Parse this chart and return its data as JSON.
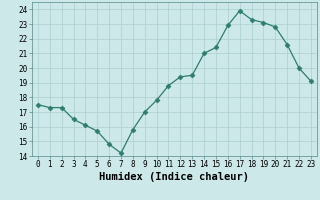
{
  "x": [
    0,
    1,
    2,
    3,
    4,
    5,
    6,
    7,
    8,
    9,
    10,
    11,
    12,
    13,
    14,
    15,
    16,
    17,
    18,
    19,
    20,
    21,
    22,
    23
  ],
  "y": [
    17.5,
    17.3,
    17.3,
    16.5,
    16.1,
    15.7,
    14.8,
    14.2,
    15.8,
    17.0,
    17.8,
    18.8,
    19.4,
    19.5,
    21.0,
    21.4,
    22.9,
    23.9,
    23.3,
    23.1,
    22.8,
    21.6,
    20.0,
    19.1
  ],
  "line_color": "#2e7d6e",
  "marker": "D",
  "marker_size": 2.5,
  "bg_color": "#cce8e8",
  "grid_color": "#aacfcf",
  "xlabel": "Humidex (Indice chaleur)",
  "xlim": [
    -0.5,
    23.5
  ],
  "ylim": [
    14,
    24.5
  ],
  "yticks": [
    14,
    15,
    16,
    17,
    18,
    19,
    20,
    21,
    22,
    23,
    24
  ],
  "xticks": [
    0,
    1,
    2,
    3,
    4,
    5,
    6,
    7,
    8,
    9,
    10,
    11,
    12,
    13,
    14,
    15,
    16,
    17,
    18,
    19,
    20,
    21,
    22,
    23
  ],
  "tick_fontsize": 5.5,
  "xlabel_fontsize": 7.5
}
